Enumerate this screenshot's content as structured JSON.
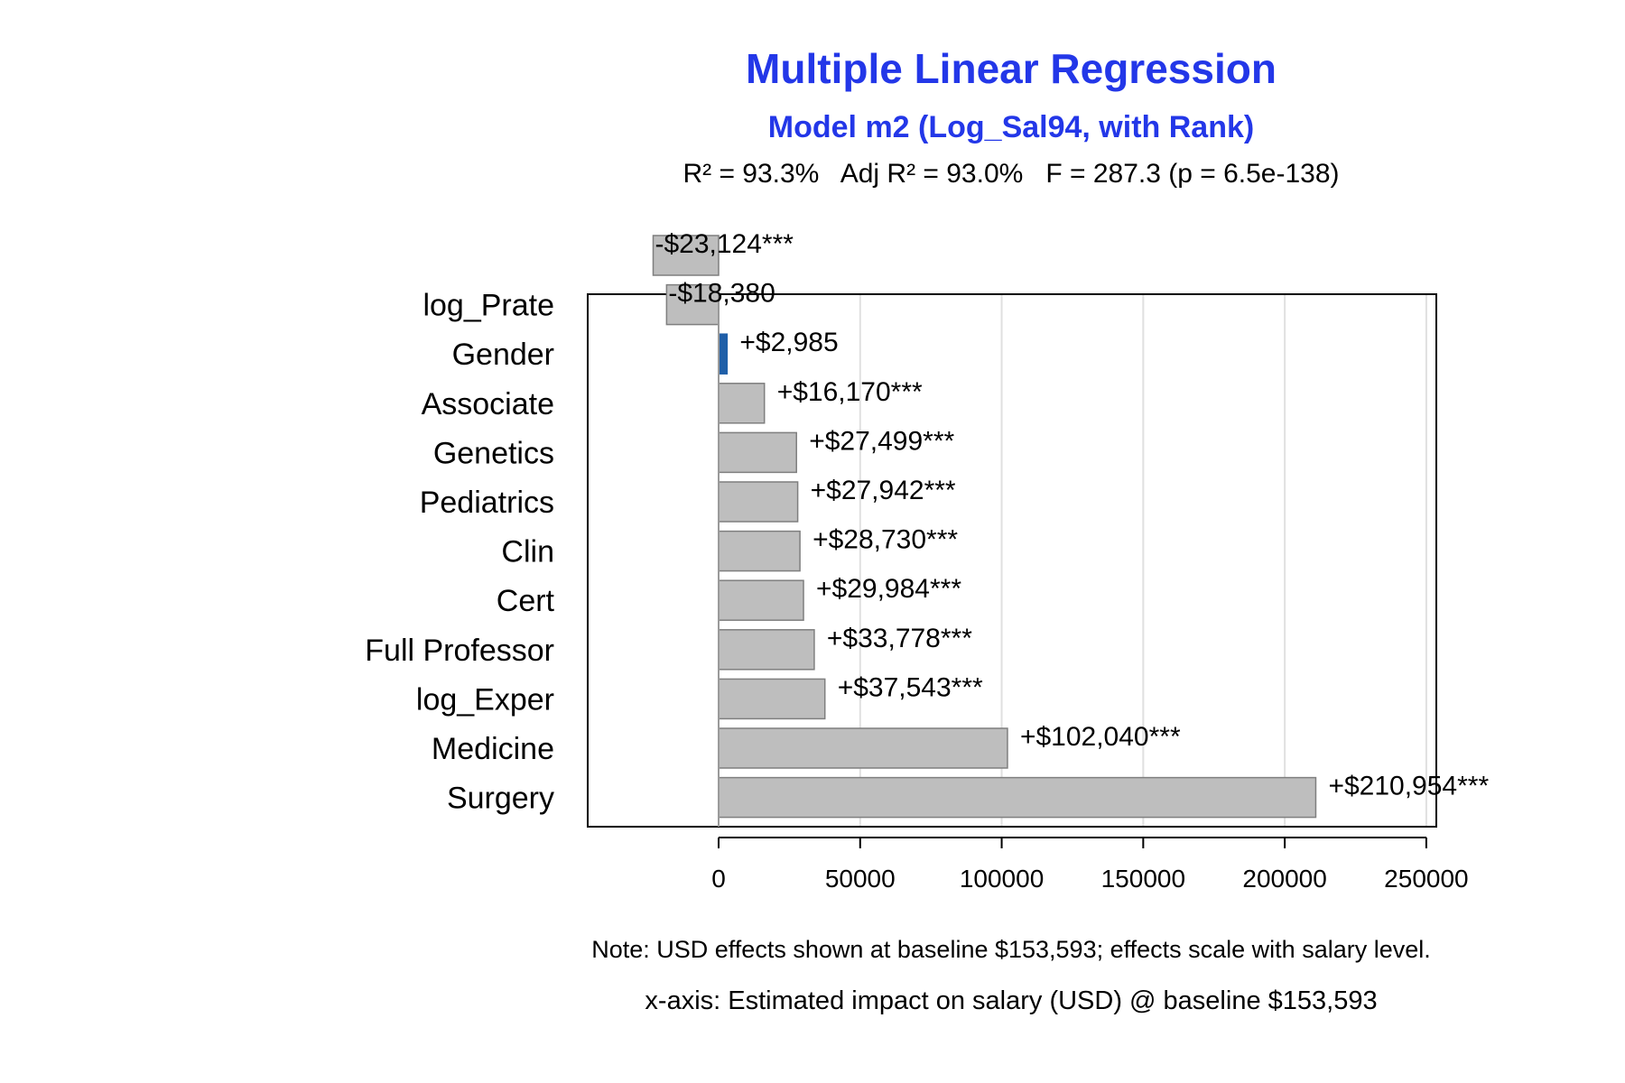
{
  "chart_data": {
    "type": "bar",
    "orientation": "horizontal",
    "title": "Multiple Linear Regression",
    "subtitle": "Model m2 (Log_Sal94, with Rank)",
    "stats_line": "R² = 93.3%   Adj R² = 93.0%   F = 287.3 (p = 6.5e-138)",
    "categories": [
      "",
      "log_Prate",
      "Gender",
      "Associate",
      "Genetics",
      "Pediatrics",
      "Clin",
      "Cert",
      "Full Professor",
      "log_Exper",
      "Medicine",
      "Surgery"
    ],
    "values": [
      -23124,
      -18380,
      2985,
      16170,
      27499,
      27942,
      28730,
      29984,
      33778,
      37543,
      102040,
      210954
    ],
    "value_labels": [
      "-$23,124***",
      "-$18,380",
      "+$2,985",
      "+$16,170***",
      "+$27,499***",
      "+$27,942***",
      "+$28,730***",
      "+$29,984***",
      "+$33,778***",
      "+$37,543***",
      "+$102,040***",
      "+$210,954***"
    ],
    "highlight_index": 2,
    "xlim": [
      -46000,
      254000
    ],
    "x_ticks": [
      0,
      50000,
      100000,
      150000,
      200000,
      250000
    ],
    "x_tick_labels": [
      "0",
      "50000",
      "100000",
      "150000",
      "200000",
      "250000"
    ],
    "grid": "vertical",
    "colors": {
      "bar": "#BEBEBE",
      "bar_border": "#7F7F7F",
      "highlight": "#1F5FA8",
      "highlight_label": "#2166AC",
      "title": "#2337E8",
      "grid": "#E0E0E0"
    },
    "note": "Note: USD effects shown at baseline $153,593; effects scale with salary level.",
    "xlabel": "x-axis: Estimated impact on salary (USD) @ baseline $153,593"
  }
}
